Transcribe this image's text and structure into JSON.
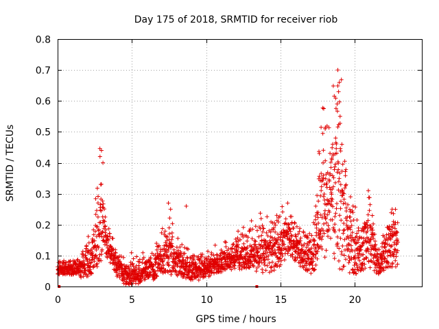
{
  "chart_data": {
    "type": "scatter",
    "title": "Day 175 of 2018, SRMTID for receiver riob",
    "xlabel": "GPS time / hours",
    "ylabel": "SRMTID / TECUs",
    "xlim": [
      0,
      24.5
    ],
    "ylim": [
      0,
      0.8
    ],
    "xticks": [
      0,
      5,
      10,
      15,
      20
    ],
    "xtick_labels": [
      "0",
      "5",
      "10",
      "15",
      "20"
    ],
    "yticks": [
      0,
      0.1,
      0.2,
      0.3,
      0.4,
      0.5,
      0.6,
      0.7,
      0.8
    ],
    "ytick_labels": [
      "0",
      "0.1",
      "0.2",
      "0.3",
      "0.4",
      "0.5",
      "0.6",
      "0.7",
      "0.8"
    ],
    "grid": true,
    "marker": "+",
    "color": "#e00000",
    "series": [
      {
        "name": "SRMTID",
        "envelope": [
          {
            "x": 0.0,
            "base": 0.05,
            "spread": 0.03
          },
          {
            "x": 1.0,
            "base": 0.05,
            "spread": 0.03
          },
          {
            "x": 1.5,
            "base": 0.05,
            "spread": 0.05
          },
          {
            "x": 2.3,
            "base": 0.07,
            "spread": 0.08
          },
          {
            "x": 2.9,
            "base": 0.18,
            "spread": 0.22
          },
          {
            "x": 3.3,
            "base": 0.13,
            "spread": 0.09
          },
          {
            "x": 3.8,
            "base": 0.07,
            "spread": 0.06
          },
          {
            "x": 4.5,
            "base": 0.03,
            "spread": 0.06
          },
          {
            "x": 5.5,
            "base": 0.03,
            "spread": 0.05
          },
          {
            "x": 6.5,
            "base": 0.05,
            "spread": 0.06
          },
          {
            "x": 7.5,
            "base": 0.09,
            "spread": 0.12
          },
          {
            "x": 8.5,
            "base": 0.05,
            "spread": 0.06
          },
          {
            "x": 9.5,
            "base": 0.04,
            "spread": 0.05
          },
          {
            "x": 10.5,
            "base": 0.06,
            "spread": 0.05
          },
          {
            "x": 11.5,
            "base": 0.08,
            "spread": 0.06
          },
          {
            "x": 12.5,
            "base": 0.09,
            "spread": 0.08
          },
          {
            "x": 13.5,
            "base": 0.09,
            "spread": 0.1
          },
          {
            "x": 14.5,
            "base": 0.09,
            "spread": 0.12
          },
          {
            "x": 15.5,
            "base": 0.14,
            "spread": 0.1
          },
          {
            "x": 16.5,
            "base": 0.09,
            "spread": 0.07
          },
          {
            "x": 17.2,
            "base": 0.08,
            "spread": 0.1
          },
          {
            "x": 17.7,
            "base": 0.2,
            "spread": 0.3
          },
          {
            "x": 18.3,
            "base": 0.22,
            "spread": 0.25
          },
          {
            "x": 18.9,
            "base": 0.25,
            "spread": 0.45
          },
          {
            "x": 19.5,
            "base": 0.12,
            "spread": 0.17
          },
          {
            "x": 20.3,
            "base": 0.08,
            "spread": 0.1
          },
          {
            "x": 21.0,
            "base": 0.13,
            "spread": 0.17
          },
          {
            "x": 21.6,
            "base": 0.06,
            "spread": 0.06
          },
          {
            "x": 22.4,
            "base": 0.12,
            "spread": 0.13
          },
          {
            "x": 22.9,
            "base": 0.1,
            "spread": 0.1
          }
        ],
        "highlights": [
          [
            2.95,
            0.44
          ],
          [
            2.85,
            0.42
          ],
          [
            3.05,
            0.4
          ],
          [
            2.9,
            0.33
          ],
          [
            7.45,
            0.27
          ],
          [
            7.6,
            0.25
          ],
          [
            8.65,
            0.26
          ],
          [
            17.6,
            0.43
          ],
          [
            17.9,
            0.575
          ],
          [
            18.0,
            0.51
          ],
          [
            18.85,
            0.7
          ],
          [
            18.95,
            0.66
          ],
          [
            18.9,
            0.63
          ],
          [
            18.8,
            0.59
          ],
          [
            19.0,
            0.55
          ],
          [
            18.7,
            0.48
          ],
          [
            18.5,
            0.46
          ],
          [
            19.7,
            0.29
          ],
          [
            20.9,
            0.31
          ],
          [
            22.5,
            0.25
          ]
        ],
        "zero_markers": [
          0.1,
          13.4
        ]
      }
    ]
  }
}
